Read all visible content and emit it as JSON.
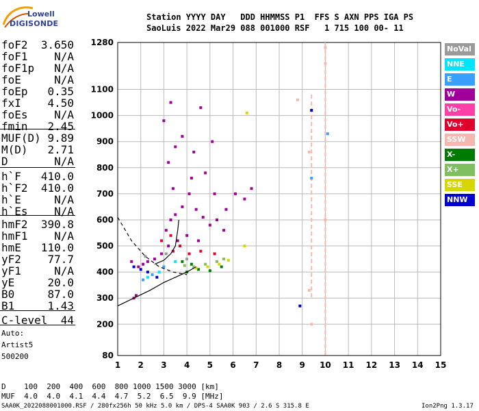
{
  "logo": {
    "line1": "Lowell",
    "line2": "DIGISONDE"
  },
  "header": {
    "row1": "Station YYYY DAY   DDD HHMMSS P1  FFS S AXN PPS IGA PS",
    "row2": "SaoLuis 2022 Mar29 088 001000 RSF   1 715 100 00- 11"
  },
  "params_a": [
    {
      "name": "foF2",
      "value": "3.650"
    },
    {
      "name": "foF1",
      "value": "N/A"
    },
    {
      "name": "foF1p",
      "value": "N/A"
    },
    {
      "name": "foE",
      "value": "N/A"
    },
    {
      "name": "foEp",
      "value": "0.35"
    },
    {
      "name": "fxI",
      "value": "4.50"
    },
    {
      "name": "foEs",
      "value": "N/A"
    },
    {
      "name": "fmin",
      "value": "2.45"
    }
  ],
  "params_b": [
    {
      "name": "MUF(D)",
      "value": "9.89"
    },
    {
      "name": "M(D)",
      "value": "2.71"
    },
    {
      "name": "D",
      "value": "N/A"
    }
  ],
  "params_c": [
    {
      "name": "h`F",
      "value": "410.0"
    },
    {
      "name": "h`F2",
      "value": "410.0"
    },
    {
      "name": "h`E",
      "value": "N/A"
    },
    {
      "name": "h`Es",
      "value": "N/A"
    }
  ],
  "params_d": [
    {
      "name": "hmF2",
      "value": "390.8"
    },
    {
      "name": "hmF1",
      "value": "N/A"
    },
    {
      "name": "hmE",
      "value": "110.0"
    },
    {
      "name": "yF2",
      "value": "77.7"
    },
    {
      "name": "yF1",
      "value": "N/A"
    },
    {
      "name": "yE",
      "value": "20.0"
    },
    {
      "name": "B0",
      "value": "87.0"
    },
    {
      "name": "B1",
      "value": "1.43"
    }
  ],
  "clevel": {
    "name": "C-level",
    "value": "44"
  },
  "auto": {
    "line1": "Auto:",
    "line2": "Artist5",
    "line3": "500200"
  },
  "legend": [
    {
      "label": "NoVal",
      "bg": "#9a9a9a",
      "fg": "#ffffff"
    },
    {
      "label": "NNE",
      "bg": "#00e5ff",
      "fg": "#ffffff"
    },
    {
      "label": "E",
      "bg": "#3aa0ff",
      "fg": "#ffffff"
    },
    {
      "label": "W",
      "bg": "#a0009a",
      "fg": "#ffffff"
    },
    {
      "label": "Vo-",
      "bg": "#ff3fa8",
      "fg": "#ffffff"
    },
    {
      "label": "Vo+",
      "bg": "#e0002a",
      "fg": "#ffffff"
    },
    {
      "label": "SSW",
      "bg": "#f5b8b0",
      "fg": "#ffffff"
    },
    {
      "label": "X-",
      "bg": "#007a00",
      "fg": "#ffffff"
    },
    {
      "label": "X+",
      "bg": "#7fbf5f",
      "fg": "#ffffff"
    },
    {
      "label": "SSE",
      "bg": "#d6d600",
      "fg": "#ffffff"
    },
    {
      "label": "NNW",
      "bg": "#0000cc",
      "fg": "#ffffff"
    }
  ],
  "muf_table": {
    "row1": "D    100  200  400  600  800 1000 1500 3000 [km]",
    "row2": "MUF  4.0  4.0  4.1  4.4  4.7  5.2  6.5  9.9 [MHz]"
  },
  "footer": {
    "left": "SAA0K_2022088001000.RSF / 280fx256h 50 kHz 5.0 km / DPS-4 SAA0K 903 / 2.6 S 315.8 E",
    "right": "Ion2Png 1.3.17"
  },
  "chart_data": {
    "type": "scatter",
    "xlim": [
      1,
      15
    ],
    "ylim": [
      80,
      1280
    ],
    "x_ticks": [
      1,
      2,
      3,
      4,
      5,
      6,
      7,
      8,
      9,
      10,
      11,
      12,
      13,
      14,
      15
    ],
    "y_ticks": [
      80,
      200,
      300,
      400,
      500,
      600,
      700,
      800,
      900,
      1000,
      1100,
      1280
    ],
    "grid": true,
    "series": [
      {
        "name": "W",
        "color": "#a0009a",
        "points": [
          [
            3.1,
            560
          ],
          [
            3.3,
            600
          ],
          [
            3.5,
            620
          ],
          [
            3.8,
            650
          ],
          [
            4.1,
            700
          ],
          [
            4.4,
            640
          ],
          [
            4.7,
            610
          ],
          [
            5.0,
            580
          ],
          [
            5.3,
            600
          ],
          [
            5.6,
            560
          ],
          [
            3.2,
            500
          ],
          [
            3.6,
            520
          ],
          [
            4.0,
            540
          ],
          [
            4.5,
            520
          ],
          [
            3.4,
            720
          ],
          [
            4.2,
            760
          ],
          [
            3.2,
            820
          ],
          [
            3.5,
            880
          ],
          [
            3.8,
            920
          ],
          [
            4.3,
            860
          ],
          [
            4.8,
            780
          ],
          [
            5.2,
            700
          ],
          [
            5.7,
            640
          ],
          [
            6.1,
            700
          ],
          [
            6.5,
            680
          ],
          [
            6.8,
            720
          ],
          [
            3.0,
            980
          ],
          [
            3.3,
            1050
          ],
          [
            4.6,
            1030
          ],
          [
            5.1,
            900
          ],
          [
            2.1,
            430
          ],
          [
            2.3,
            440
          ],
          [
            2.6,
            450
          ],
          [
            2.9,
            470
          ],
          [
            1.6,
            440
          ],
          [
            1.9,
            420
          ],
          [
            1.8,
            310
          ],
          [
            1.7,
            300
          ]
        ]
      },
      {
        "name": "Vo+",
        "color": "#e0002a",
        "points": [
          [
            3.4,
            480
          ],
          [
            3.7,
            500
          ],
          [
            4.1,
            470
          ],
          [
            4.6,
            480
          ],
          [
            5.2,
            470
          ],
          [
            2.9,
            520
          ],
          [
            3.3,
            540
          ]
        ]
      },
      {
        "name": "X-",
        "color": "#007a00",
        "points": [
          [
            4.0,
            400
          ],
          [
            4.5,
            410
          ],
          [
            5.0,
            405
          ],
          [
            5.5,
            420
          ],
          [
            4.2,
            430
          ],
          [
            3.8,
            440
          ]
        ]
      },
      {
        "name": "X+",
        "color": "#7fbf5f",
        "points": [
          [
            4.3,
            420
          ],
          [
            4.8,
            430
          ],
          [
            5.3,
            440
          ],
          [
            3.9,
            425
          ],
          [
            5.6,
            450
          ]
        ]
      },
      {
        "name": "SSE",
        "color": "#d6d600",
        "points": [
          [
            4.4,
            415
          ],
          [
            4.9,
            420
          ],
          [
            5.4,
            430
          ],
          [
            5.8,
            445
          ],
          [
            6.5,
            500
          ],
          [
            6.6,
            1010
          ]
        ]
      },
      {
        "name": "E",
        "color": "#3aa0ff",
        "points": [
          [
            2.1,
            370
          ],
          [
            2.5,
            390
          ],
          [
            3.0,
            420
          ],
          [
            9.4,
            760
          ],
          [
            10.1,
            930
          ]
        ]
      },
      {
        "name": "NNE",
        "color": "#00e5ff",
        "points": [
          [
            2.3,
            380
          ],
          [
            2.8,
            400
          ],
          [
            3.5,
            440
          ]
        ]
      },
      {
        "name": "NNW",
        "color": "#0000cc",
        "points": [
          [
            1.7,
            420
          ],
          [
            2.0,
            410
          ],
          [
            2.3,
            400
          ],
          [
            2.7,
            380
          ],
          [
            8.9,
            270
          ],
          [
            9.4,
            1020
          ]
        ]
      },
      {
        "name": "SSW",
        "color": "#f5b8b0",
        "points": [
          [
            8.8,
            1060
          ],
          [
            9.3,
            860
          ],
          [
            9.4,
            200
          ],
          [
            10.0,
            1260
          ],
          [
            10.0,
            1200
          ],
          [
            10.0,
            600
          ],
          [
            9.3,
            330
          ]
        ]
      },
      {
        "name": "NoVal",
        "color": "#9a9a9a",
        "points": [
          [
            2.2,
            460
          ],
          [
            3.1,
            470
          ],
          [
            4.0,
            450
          ]
        ]
      }
    ],
    "curves": [
      {
        "style": "dashed",
        "points": [
          [
            1.0,
            610
          ],
          [
            1.6,
            520
          ],
          [
            2.2,
            460
          ],
          [
            2.8,
            420
          ],
          [
            3.4,
            400
          ],
          [
            4.0,
            390
          ]
        ]
      },
      {
        "style": "solid",
        "points": [
          [
            1.0,
            270
          ],
          [
            1.7,
            300
          ],
          [
            2.4,
            330
          ],
          [
            3.0,
            360
          ],
          [
            3.5,
            380
          ],
          [
            4.0,
            400
          ],
          [
            4.4,
            420
          ]
        ]
      },
      {
        "style": "solid",
        "points": [
          [
            2.6,
            430
          ],
          [
            3.0,
            445
          ],
          [
            3.3,
            470
          ],
          [
            3.5,
            500
          ],
          [
            3.6,
            560
          ],
          [
            3.65,
            600
          ]
        ]
      }
    ],
    "vertical_lines": [
      {
        "x": 9.4,
        "y": [
          300,
          1080
        ],
        "color": "#f5b8b0"
      },
      {
        "x": 10.0,
        "y": [
          80,
          1280
        ],
        "color": "#f5b8b0"
      }
    ]
  }
}
